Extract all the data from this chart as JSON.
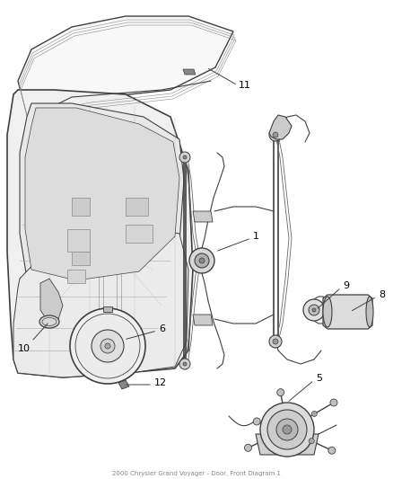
{
  "title": "2000 Chrysler Grand Voyager\nDoor, Front Diagram 1",
  "background_color": "#ffffff",
  "line_color": "#404040",
  "label_color": "#000000",
  "fig_width": 4.38,
  "fig_height": 5.33,
  "dpi": 100,
  "label_fontsize": 8
}
